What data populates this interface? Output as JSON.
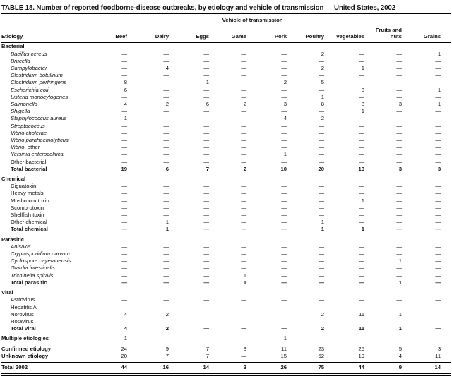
{
  "title": "TABLE 18. Number of reported foodborne-disease outbreaks, by etiology and vehicle of transmission — United States, 2002",
  "colors": {
    "text": "#111111",
    "rule": "#000000",
    "background": "#ffffff"
  },
  "table": {
    "spanner": "Vehicle of transmission",
    "row_header": "Etiology",
    "columns": [
      "Beef",
      "Dairy",
      "Eggs",
      "Game",
      "Pork",
      "Poultry",
      "Vegetables",
      "Fruits and nuts",
      "Grains"
    ],
    "rows": [
      {
        "type": "section",
        "label": "Bacterial"
      },
      {
        "type": "item",
        "italic": true,
        "label": "Bacillus cereus",
        "values": [
          "—",
          "—",
          "—",
          "—",
          "—",
          "2",
          "—",
          "—",
          "1"
        ]
      },
      {
        "type": "item",
        "italic": true,
        "label": "Brucella",
        "values": [
          "—",
          "—",
          "—",
          "—",
          "—",
          "—",
          "—",
          "—",
          "—"
        ]
      },
      {
        "type": "item",
        "italic": true,
        "label": "Campylobacter",
        "values": [
          "—",
          "4",
          "—",
          "—",
          "—",
          "2",
          "1",
          "—",
          "—"
        ]
      },
      {
        "type": "item",
        "italic": true,
        "label": "Clostridium botulinum",
        "values": [
          "—",
          "—",
          "—",
          "—",
          "—",
          "—",
          "—",
          "—",
          "—"
        ]
      },
      {
        "type": "item",
        "italic": true,
        "label": "Clostridium perfringens",
        "values": [
          "8",
          "—",
          "1",
          "—",
          "2",
          "5",
          "—",
          "—",
          "—"
        ]
      },
      {
        "type": "item",
        "italic": true,
        "label": "Escherichia coli",
        "values": [
          "6",
          "—",
          "—",
          "—",
          "—",
          "—",
          "3",
          "—",
          "1"
        ]
      },
      {
        "type": "item",
        "italic": true,
        "label": "Listeria monocytogenes",
        "values": [
          "—",
          "—",
          "—",
          "—",
          "—",
          "1",
          "—",
          "—",
          "—"
        ]
      },
      {
        "type": "item",
        "italic": true,
        "label": "Salmonella",
        "values": [
          "4",
          "2",
          "6",
          "2",
          "3",
          "8",
          "8",
          "3",
          "1"
        ]
      },
      {
        "type": "item",
        "italic": true,
        "label": "Shigella",
        "values": [
          "—",
          "—",
          "—",
          "—",
          "—",
          "—",
          "1",
          "—",
          "—"
        ]
      },
      {
        "type": "item",
        "italic": true,
        "label": "Staphylococcus aureus",
        "values": [
          "1",
          "—",
          "—",
          "—",
          "4",
          "2",
          "—",
          "—",
          "—"
        ]
      },
      {
        "type": "item",
        "italic": true,
        "label": "Streptococcus",
        "values": [
          "—",
          "—",
          "—",
          "—",
          "—",
          "—",
          "—",
          "—",
          "—"
        ]
      },
      {
        "type": "item",
        "italic": true,
        "label": "Vibrio cholerae",
        "values": [
          "—",
          "—",
          "—",
          "—",
          "—",
          "—",
          "—",
          "—",
          "—"
        ]
      },
      {
        "type": "item",
        "italic": true,
        "label": "Vibrio parahaemolyticus",
        "values": [
          "—",
          "—",
          "—",
          "—",
          "—",
          "—",
          "—",
          "—",
          "—"
        ]
      },
      {
        "type": "item",
        "italic": true,
        "label": "Vibrio",
        "suffix": ", other",
        "values": [
          "—",
          "—",
          "—",
          "—",
          "—",
          "—",
          "—",
          "—",
          "—"
        ]
      },
      {
        "type": "item",
        "italic": true,
        "label": "Yersinia enterocolitica",
        "values": [
          "—",
          "—",
          "—",
          "—",
          "1",
          "—",
          "—",
          "—",
          "—"
        ]
      },
      {
        "type": "item",
        "label": "Other bacterial",
        "values": [
          "—",
          "—",
          "—",
          "—",
          "—",
          "—",
          "—",
          "—",
          "—"
        ]
      },
      {
        "type": "total",
        "label": "Total bacterial",
        "values": [
          "19",
          "6",
          "7",
          "2",
          "10",
          "20",
          "13",
          "3",
          "3"
        ]
      },
      {
        "type": "section",
        "label": "Chemical",
        "gap": true
      },
      {
        "type": "item",
        "label": "Ciguatoxin",
        "values": [
          "—",
          "—",
          "—",
          "—",
          "—",
          "—",
          "—",
          "—",
          "—"
        ]
      },
      {
        "type": "item",
        "label": "Heavy metals",
        "values": [
          "—",
          "—",
          "—",
          "—",
          "—",
          "—",
          "—",
          "—",
          "—"
        ]
      },
      {
        "type": "item",
        "label": "Mushroom toxin",
        "values": [
          "—",
          "—",
          "—",
          "—",
          "—",
          "—",
          "1",
          "—",
          "—"
        ]
      },
      {
        "type": "item",
        "label": "Scombrotoxin",
        "values": [
          "—",
          "—",
          "—",
          "—",
          "—",
          "—",
          "—",
          "—",
          "—"
        ]
      },
      {
        "type": "item",
        "label": "Shellfish toxin",
        "values": [
          "—",
          "—",
          "—",
          "—",
          "—",
          "—",
          "—",
          "—",
          "—"
        ]
      },
      {
        "type": "item",
        "label": "Other chemical",
        "values": [
          "—",
          "1",
          "—",
          "—",
          "—",
          "1",
          "—",
          "—",
          "—"
        ]
      },
      {
        "type": "total",
        "label": "Total chemical",
        "values": [
          "—",
          "1",
          "—",
          "—",
          "—",
          "1",
          "1",
          "—",
          "—"
        ]
      },
      {
        "type": "section",
        "label": "Parasitic",
        "gap": true
      },
      {
        "type": "item",
        "italic": true,
        "label": "Anisakis",
        "values": [
          "—",
          "—",
          "—",
          "—",
          "—",
          "—",
          "—",
          "—",
          "—"
        ]
      },
      {
        "type": "item",
        "italic": true,
        "label": "Cryptosporidium parvum",
        "values": [
          "—",
          "—",
          "—",
          "—",
          "—",
          "—",
          "—",
          "—",
          "—"
        ]
      },
      {
        "type": "item",
        "italic": true,
        "label": "Cyclospora cayetanensis",
        "values": [
          "—",
          "—",
          "—",
          "—",
          "—",
          "—",
          "—",
          "1",
          "—"
        ]
      },
      {
        "type": "item",
        "italic": true,
        "label": "Giardia intestinalis",
        "values": [
          "—",
          "—",
          "—",
          "—",
          "—",
          "—",
          "—",
          "—",
          "—"
        ]
      },
      {
        "type": "item",
        "italic": true,
        "label": "Trichinella spiralis",
        "values": [
          "—",
          "—",
          "—",
          "1",
          "—",
          "—",
          "—",
          "—",
          "—"
        ]
      },
      {
        "type": "total",
        "label": "Total parasitic",
        "values": [
          "—",
          "—",
          "—",
          "1",
          "—",
          "—",
          "—",
          "1",
          "—"
        ]
      },
      {
        "type": "section",
        "label": "Viral",
        "gap": true
      },
      {
        "type": "item",
        "label": "Astrovirus",
        "values": [
          "—",
          "—",
          "—",
          "—",
          "—",
          "—",
          "—",
          "—",
          "—"
        ]
      },
      {
        "type": "item",
        "label": "Hepatitis A",
        "values": [
          "—",
          "—",
          "—",
          "—",
          "—",
          "—",
          "—",
          "—",
          "—"
        ]
      },
      {
        "type": "item",
        "label": "Norovirus",
        "values": [
          "4",
          "2",
          "—",
          "—",
          "—",
          "2",
          "11",
          "1",
          "—"
        ]
      },
      {
        "type": "item",
        "label": "Rotavirus",
        "values": [
          "—",
          "—",
          "—",
          "—",
          "—",
          "—",
          "—",
          "—",
          "—"
        ]
      },
      {
        "type": "total",
        "label": "Total viral",
        "values": [
          "4",
          "2",
          "—",
          "—",
          "—",
          "2",
          "11",
          "1",
          "—"
        ]
      },
      {
        "type": "solo",
        "label": "Multiple etiologies",
        "gap": true,
        "values": [
          "1",
          "—",
          "—",
          "—",
          "1",
          "—",
          "—",
          "—",
          "—"
        ]
      },
      {
        "type": "solo",
        "label": "Confirmed etiology",
        "gap": true,
        "values": [
          "24",
          "9",
          "7",
          "3",
          "11",
          "23",
          "25",
          "5",
          "3"
        ]
      },
      {
        "type": "solo",
        "label": "Unknown etiology",
        "gap_after": true,
        "values": [
          "20",
          "7",
          "7",
          "—",
          "15",
          "52",
          "19",
          "4",
          "11"
        ]
      },
      {
        "type": "grand",
        "label": "Total 2002",
        "values": [
          "44",
          "16",
          "14",
          "3",
          "26",
          "75",
          "44",
          "9",
          "14"
        ]
      }
    ]
  }
}
